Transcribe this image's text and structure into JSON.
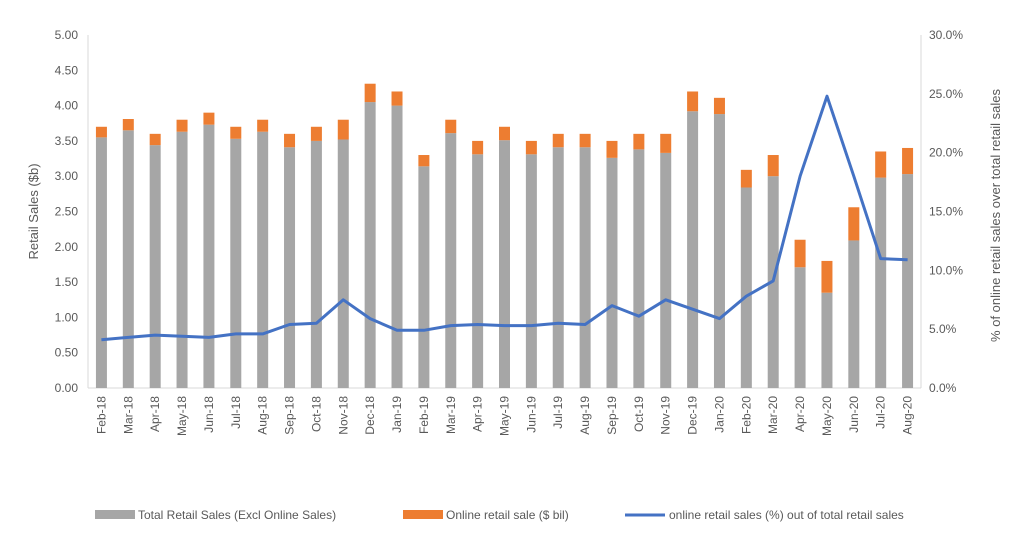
{
  "chart_data": {
    "type": "bar",
    "stacked": true,
    "categories": [
      "Feb-18",
      "Mar-18",
      "Apr-18",
      "May-18",
      "Jun-18",
      "Jul-18",
      "Aug-18",
      "Sep-18",
      "Oct-18",
      "Nov-18",
      "Dec-18",
      "Jan-19",
      "Feb-19",
      "Mar-19",
      "Apr-19",
      "May-19",
      "Jun-19",
      "Jul-19",
      "Aug-19",
      "Sep-19",
      "Oct-19",
      "Nov-19",
      "Dec-19",
      "Jan-20",
      "Feb-20",
      "Mar-20",
      "Apr-20",
      "May-20",
      "Jun-20",
      "Jul-20",
      "Aug-20"
    ],
    "ylabel": "Retail Sales ($b)",
    "y2label": "% of online retail sales over total retail sales",
    "ylim": [
      0,
      5
    ],
    "y2lim": [
      0,
      0.3
    ],
    "yticks": [
      "0.00",
      "0.50",
      "1.00",
      "1.50",
      "2.00",
      "2.50",
      "3.00",
      "3.50",
      "4.00",
      "4.50",
      "5.00"
    ],
    "y2ticks": [
      "0.0%",
      "5.0%",
      "10.0%",
      "15.0%",
      "20.0%",
      "25.0%",
      "30.0%"
    ],
    "series": [
      {
        "name": "Total Retail Sales (Excl Online Sales)",
        "type": "bar",
        "color": "#a6a6a6",
        "values": [
          3.55,
          3.65,
          3.44,
          3.63,
          3.73,
          3.53,
          3.63,
          3.41,
          3.5,
          3.52,
          4.05,
          4.0,
          3.14,
          3.61,
          3.31,
          3.51,
          3.31,
          3.41,
          3.41,
          3.26,
          3.38,
          3.33,
          3.92,
          3.88,
          2.84,
          3.0,
          1.71,
          1.35,
          2.09,
          2.98,
          3.03
        ]
      },
      {
        "name": "Online retail sale ($ bil)",
        "type": "bar",
        "color": "#ed7d31",
        "values": [
          0.15,
          0.16,
          0.16,
          0.17,
          0.17,
          0.17,
          0.17,
          0.19,
          0.2,
          0.28,
          0.26,
          0.2,
          0.16,
          0.19,
          0.19,
          0.19,
          0.19,
          0.19,
          0.19,
          0.24,
          0.22,
          0.27,
          0.28,
          0.23,
          0.25,
          0.3,
          0.39,
          0.45,
          0.47,
          0.37,
          0.37
        ]
      },
      {
        "name": "online retail sales (%) out of total retail sales",
        "type": "line",
        "axis": "secondary",
        "color": "#4472c4",
        "values": [
          0.041,
          0.043,
          0.045,
          0.044,
          0.043,
          0.046,
          0.046,
          0.054,
          0.055,
          0.075,
          0.059,
          0.049,
          0.049,
          0.053,
          0.054,
          0.053,
          0.053,
          0.055,
          0.054,
          0.07,
          0.061,
          0.075,
          0.067,
          0.059,
          0.078,
          0.091,
          0.18,
          0.248,
          0.18,
          0.11,
          0.109
        ]
      }
    ],
    "legend": "bottom",
    "grid": false
  }
}
